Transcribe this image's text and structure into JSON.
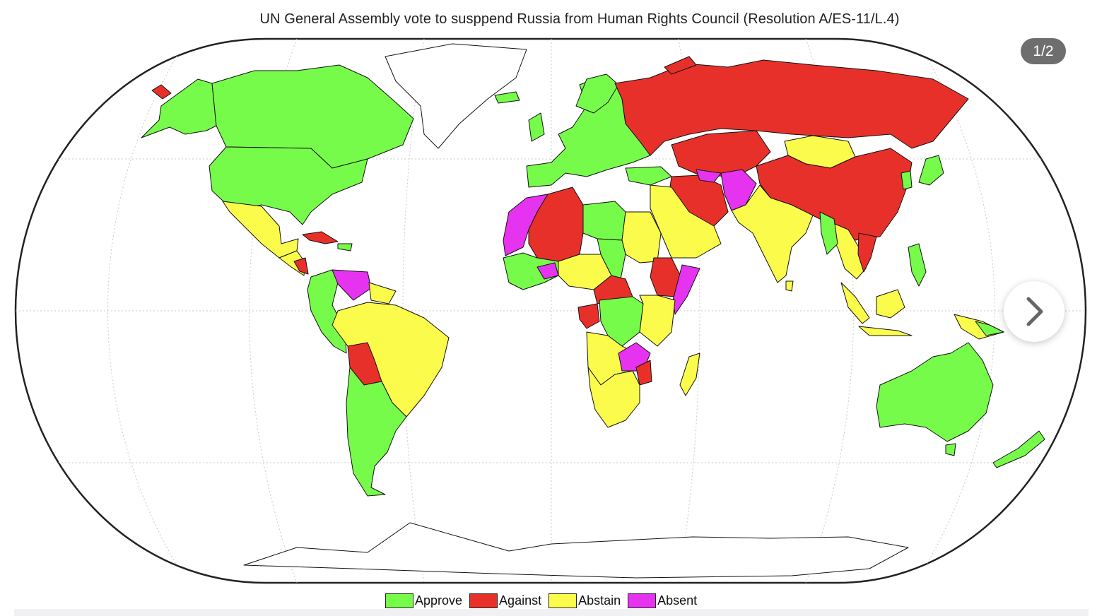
{
  "title": "UN General Assembly vote to susppend Russia from Human Rights Council (Resolution A/ES-11/L.4)",
  "slide_counter": "1/2",
  "next_icon": "chevron-right-icon",
  "colors": {
    "approve": "#77fb4b",
    "against": "#e8302a",
    "abstain": "#fbfb4b",
    "absent": "#e633ef",
    "no_data": "#ffffff"
  },
  "legend": [
    {
      "label": "Approve",
      "key": "approve"
    },
    {
      "label": "Against",
      "key": "against"
    },
    {
      "label": "Abstain",
      "key": "abstain"
    },
    {
      "label": "Absent",
      "key": "absent"
    }
  ],
  "regions": [
    {
      "name": "Canada",
      "vote": "approve"
    },
    {
      "name": "United States",
      "vote": "approve"
    },
    {
      "name": "Mexico",
      "vote": "abstain"
    },
    {
      "name": "Cuba",
      "vote": "against"
    },
    {
      "name": "Nicaragua",
      "vote": "against"
    },
    {
      "name": "Venezuela",
      "vote": "absent"
    },
    {
      "name": "Brazil",
      "vote": "abstain"
    },
    {
      "name": "Bolivia",
      "vote": "against"
    },
    {
      "name": "Argentina",
      "vote": "approve"
    },
    {
      "name": "Europe",
      "vote": "approve"
    },
    {
      "name": "Russia",
      "vote": "against"
    },
    {
      "name": "Kazakhstan",
      "vote": "against"
    },
    {
      "name": "Mongolia",
      "vote": "abstain"
    },
    {
      "name": "China",
      "vote": "against"
    },
    {
      "name": "Iran",
      "vote": "against"
    },
    {
      "name": "Afghanistan",
      "vote": "absent"
    },
    {
      "name": "India",
      "vote": "abstain"
    },
    {
      "name": "Saudi Arabia",
      "vote": "abstain"
    },
    {
      "name": "Algeria",
      "vote": "against"
    },
    {
      "name": "Libya",
      "vote": "approve"
    },
    {
      "name": "Egypt",
      "vote": "abstain"
    },
    {
      "name": "Chad",
      "vote": "approve"
    },
    {
      "name": "Ethiopia",
      "vote": "against"
    },
    {
      "name": "Somalia",
      "vote": "absent"
    },
    {
      "name": "Congo DR",
      "vote": "approve"
    },
    {
      "name": "Zimbabwe",
      "vote": "absent"
    },
    {
      "name": "South Africa",
      "vote": "abstain"
    },
    {
      "name": "Madagascar",
      "vote": "abstain"
    },
    {
      "name": "Japan",
      "vote": "approve"
    },
    {
      "name": "Indonesia",
      "vote": "abstain"
    },
    {
      "name": "Australia",
      "vote": "approve"
    },
    {
      "name": "New Zealand",
      "vote": "approve"
    }
  ]
}
